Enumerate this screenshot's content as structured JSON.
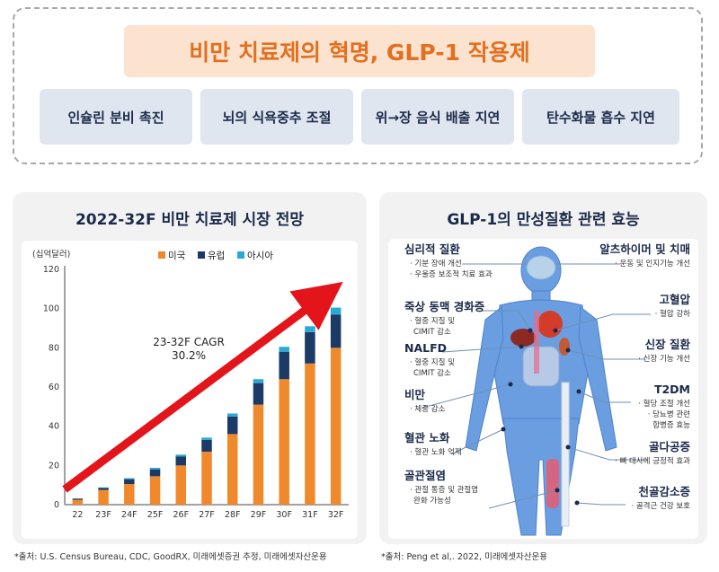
{
  "top": {
    "title": "비만 치료제의 혁명, GLP-1 작용제",
    "mechanisms": [
      "인슐린 분비 촉진",
      "뇌의 식욕중추 조절",
      "위→장 음식 배출 지연",
      "탄수화물 흡수 지연"
    ]
  },
  "left_panel": {
    "title": "2022-32F 비만 치료제 시장 전망",
    "unit": "(십억달러)",
    "cagr_label_1": "23-32F CAGR",
    "cagr_label_2": "30.2%",
    "source": "*출처: U.S. Census Bureau, CDC, GoodRX, 미래에셋증권 추정, 미래에셋자산운용"
  },
  "chart_data": {
    "type": "bar",
    "stacked": true,
    "title": "2022-32F 비만 치료제 시장 전망",
    "ylabel": "(십억달러)",
    "ylim": [
      0,
      120
    ],
    "yticks": [
      0,
      20,
      40,
      60,
      80,
      100,
      120
    ],
    "categories": [
      "22",
      "23F",
      "24F",
      "25F",
      "26F",
      "27F",
      "28F",
      "29F",
      "30F",
      "31F",
      "32F"
    ],
    "series": [
      {
        "name": "미국",
        "color": "#f0892b",
        "values": [
          2.5,
          7.5,
          10.5,
          14.5,
          20,
          27,
          36,
          51,
          64,
          72,
          80
        ]
      },
      {
        "name": "유럽",
        "color": "#1c3a66",
        "values": [
          0.5,
          1,
          2.5,
          3.5,
          4.5,
          6,
          9,
          11,
          14,
          16,
          17
        ]
      },
      {
        "name": "아시아",
        "color": "#29a9d6",
        "values": [
          0.2,
          0.3,
          0.5,
          0.8,
          1,
          1.2,
          1.5,
          2,
          2.5,
          3,
          3.5
        ]
      }
    ],
    "legend_position": "top"
  },
  "right_panel": {
    "title": "GLP-1의 만성질환 관련 효능",
    "source": "*출처: Peng et al,. 2022, 미래에셋자산운용",
    "left_items": [
      {
        "head": "심리적 질환",
        "sub": [
          "· 기분 장애 개선",
          "· 우울증 보조적 치료 효과"
        ]
      },
      {
        "head": "죽상 동맥 경화증",
        "sub": [
          "· 혈중 지질 및",
          "CIMIT 감소"
        ]
      },
      {
        "head": "NALFD",
        "sub": [
          "· 혈중 지질 및",
          "CIMIT 감소"
        ]
      },
      {
        "head": "비만",
        "sub": [
          "· 체중 감소"
        ]
      },
      {
        "head": "혈관 노화",
        "sub": [
          "· 혈관 노화 억제"
        ]
      },
      {
        "head": "골관절염",
        "sub": [
          "· 관절 통증 및 관절염",
          "완화 가능성"
        ]
      }
    ],
    "right_items": [
      {
        "head": "알츠하이머 및 치매",
        "sub": [
          "· 운동 및 인지기능 개선"
        ]
      },
      {
        "head": "고혈압",
        "sub": [
          "· 혈압 강하"
        ]
      },
      {
        "head": "신장 질환",
        "sub": [
          "· 신장 기능 개선"
        ]
      },
      {
        "head": "T2DM",
        "sub": [
          "· 혈당 조절 개선",
          "· 당뇨병 관련",
          "합병증 효능"
        ]
      },
      {
        "head": "골다공증",
        "sub": [
          "· 뼈 대사에 긍정적 효과"
        ]
      },
      {
        "head": "천골감소증",
        "sub": [
          "· 골격근 건강 보호"
        ]
      }
    ]
  }
}
